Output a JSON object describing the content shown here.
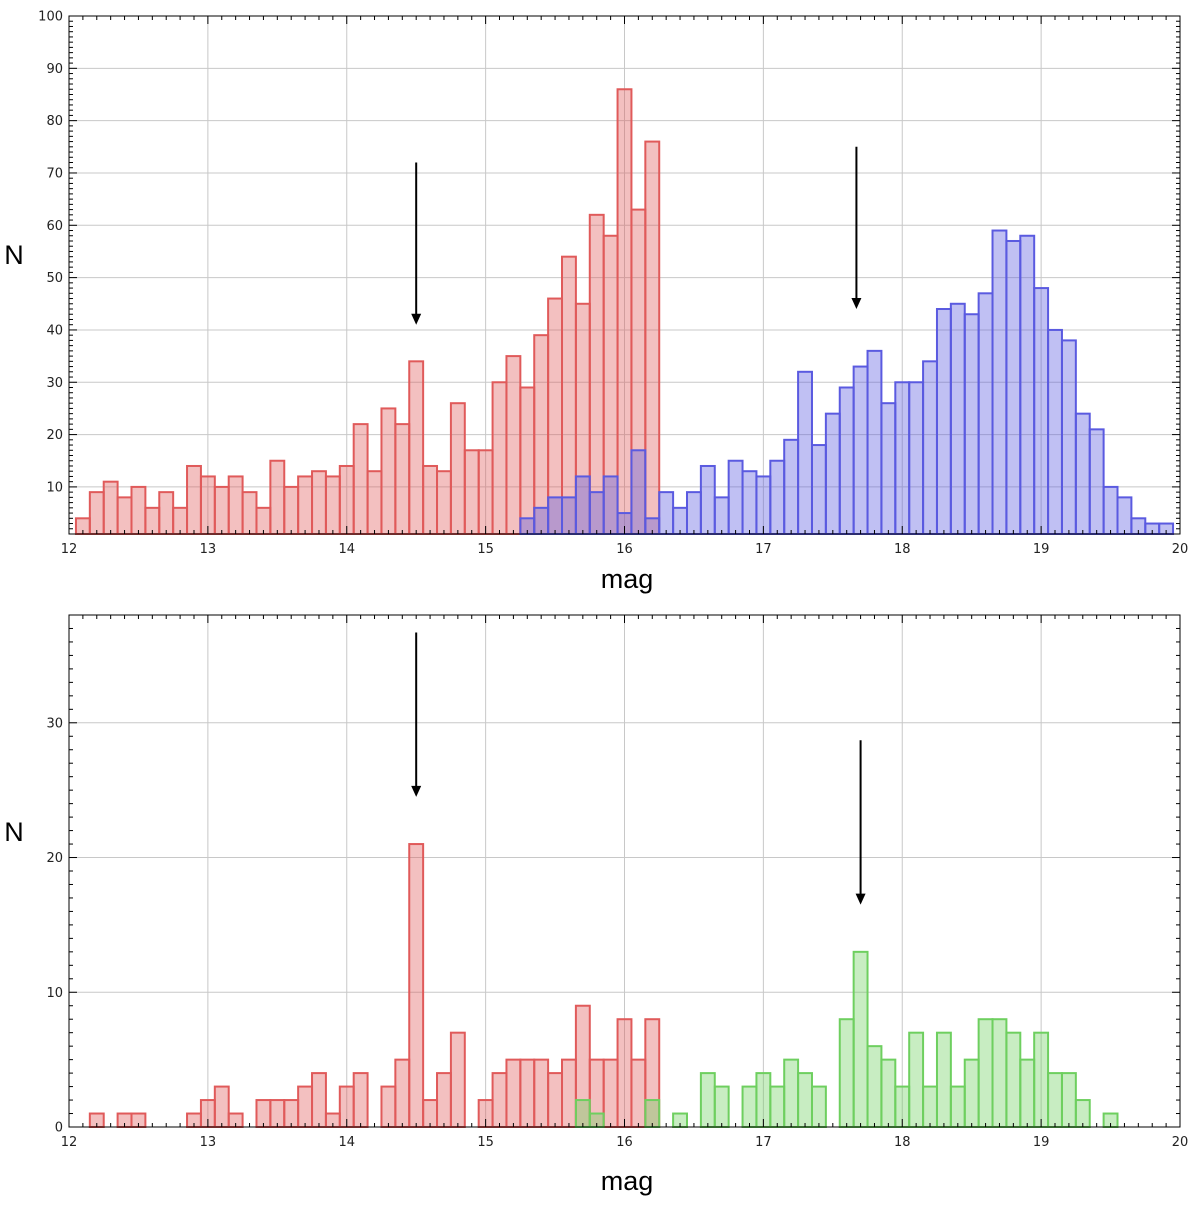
{
  "chart_data": [
    {
      "type": "bar",
      "xlabel": "mag",
      "ylabel": "N",
      "xlim": [
        12,
        20
      ],
      "ylim": [
        1,
        100
      ],
      "bin_width": 0.1,
      "xticks": [
        "12",
        "13",
        "14",
        "15",
        "16",
        "17",
        "18",
        "19",
        "20"
      ],
      "yticks": [
        "10",
        "20",
        "30",
        "40",
        "50",
        "60",
        "70",
        "80",
        "90",
        "100"
      ],
      "grid": true,
      "series": [
        {
          "color": "#e05a5a",
          "x": [
            12.1,
            12.2,
            12.3,
            12.4,
            12.5,
            12.6,
            12.7,
            12.8,
            12.9,
            13.0,
            13.1,
            13.2,
            13.3,
            13.4,
            13.5,
            13.6,
            13.7,
            13.8,
            13.9,
            14.0,
            14.1,
            14.2,
            14.3,
            14.4,
            14.5,
            14.6,
            14.7,
            14.8,
            14.9,
            15.0,
            15.1,
            15.2,
            15.3,
            15.4,
            15.5,
            15.6,
            15.7,
            15.8,
            15.9,
            16.0,
            16.1,
            16.2
          ],
          "values": [
            4,
            9,
            11,
            8,
            10,
            6,
            9,
            6,
            14,
            12,
            10,
            12,
            9,
            6,
            15,
            10,
            12,
            13,
            12,
            14,
            22,
            13,
            25,
            22,
            34,
            14,
            13,
            26,
            17,
            17,
            30,
            35,
            29,
            39,
            46,
            54,
            45,
            62,
            58,
            86,
            63,
            76
          ]
        },
        {
          "color": "#5a5ae0",
          "x": [
            15.3,
            15.4,
            15.5,
            15.6,
            15.7,
            15.8,
            15.9,
            16.0,
            16.1,
            16.2,
            16.3,
            16.4,
            16.5,
            16.6,
            16.7,
            16.8,
            16.9,
            17.0,
            17.1,
            17.2,
            17.3,
            17.4,
            17.5,
            17.6,
            17.7,
            17.8,
            17.9,
            18.0,
            18.1,
            18.2,
            18.3,
            18.4,
            18.5,
            18.6,
            18.7,
            18.8,
            18.9,
            19.0,
            19.1,
            19.2,
            19.3,
            19.4,
            19.5,
            19.6,
            19.7,
            19.8,
            19.9
          ],
          "values": [
            4,
            6,
            8,
            8,
            12,
            9,
            12,
            5,
            17,
            4,
            9,
            6,
            9,
            14,
            8,
            15,
            13,
            12,
            15,
            19,
            32,
            18,
            24,
            29,
            33,
            36,
            26,
            30,
            30,
            34,
            44,
            45,
            43,
            47,
            59,
            57,
            58,
            48,
            40,
            38,
            24,
            21,
            10,
            8,
            4,
            3,
            3
          ]
        }
      ],
      "annotations": [
        {
          "type": "arrow",
          "x": 14.5,
          "y_from": 72,
          "y_to": 41
        },
        {
          "type": "arrow",
          "x": 17.67,
          "y_from": 75,
          "y_to": 44
        }
      ]
    },
    {
      "type": "bar",
      "xlabel": "mag",
      "ylabel": "N",
      "xlim": [
        12,
        20
      ],
      "ylim": [
        0,
        38
      ],
      "bin_width": 0.1,
      "xticks": [
        "12",
        "13",
        "14",
        "15",
        "16",
        "17",
        "18",
        "19",
        "20"
      ],
      "yticks": [
        "0",
        "10",
        "20",
        "30"
      ],
      "grid": true,
      "series": [
        {
          "color": "#e05a5a",
          "x": [
            12.2,
            12.4,
            12.5,
            12.9,
            13.0,
            13.1,
            13.2,
            13.4,
            13.5,
            13.6,
            13.7,
            13.8,
            13.9,
            14.0,
            14.1,
            14.3,
            14.4,
            14.5,
            14.6,
            14.7,
            14.8,
            15.0,
            15.1,
            15.2,
            15.3,
            15.4,
            15.5,
            15.6,
            15.7,
            15.8,
            15.9,
            16.0,
            16.1,
            16.2
          ],
          "values": [
            1,
            1,
            1,
            1,
            2,
            3,
            1,
            2,
            2,
            2,
            3,
            4,
            1,
            3,
            4,
            3,
            5,
            21,
            2,
            4,
            7,
            2,
            4,
            5,
            5,
            5,
            4,
            5,
            9,
            5,
            5,
            8,
            5,
            8
          ]
        },
        {
          "color": "#6ecf5f",
          "x": [
            15.7,
            15.8,
            16.2,
            16.4,
            16.6,
            16.7,
            16.9,
            17.0,
            17.1,
            17.2,
            17.3,
            17.4,
            17.6,
            17.7,
            17.8,
            17.9,
            18.0,
            18.1,
            18.2,
            18.3,
            18.4,
            18.5,
            18.6,
            18.7,
            18.8,
            18.9,
            19.0,
            19.1,
            19.2,
            19.3,
            19.5
          ],
          "values": [
            2,
            1,
            2,
            1,
            4,
            3,
            3,
            4,
            3,
            5,
            4,
            3,
            8,
            13,
            6,
            5,
            3,
            7,
            3,
            7,
            3,
            5,
            8,
            8,
            7,
            5,
            7,
            4,
            4,
            2,
            1
          ]
        }
      ],
      "annotations": [
        {
          "type": "arrow",
          "x": 14.5,
          "y_from": 36.7,
          "y_to": 24.5
        },
        {
          "type": "arrow",
          "x": 17.7,
          "y_from": 28.7,
          "y_to": 16.5
        }
      ]
    }
  ]
}
